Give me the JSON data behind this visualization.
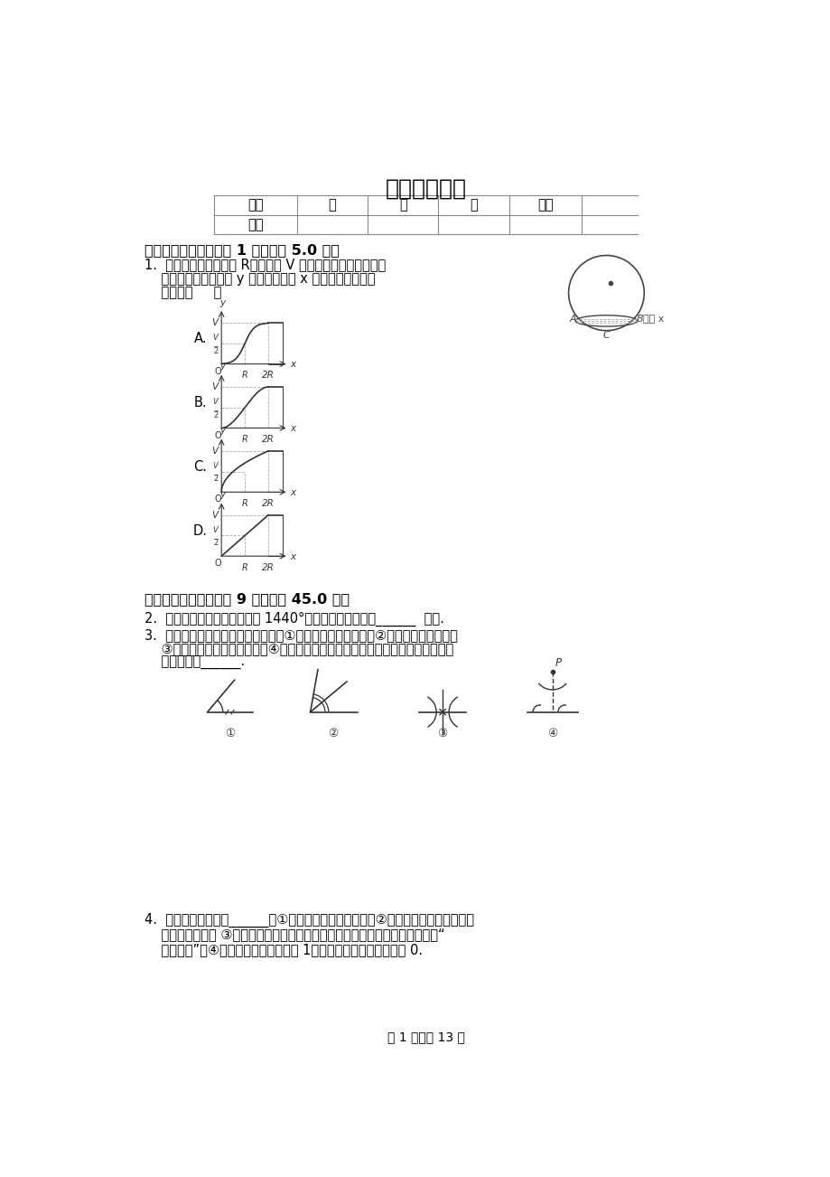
{
  "title": "开学数学试卷",
  "bg_color": "#ffffff",
  "text_color": "#000000",
  "table_headers": [
    "题号",
    "一",
    "二",
    "三",
    "总分"
  ],
  "table_row2": [
    "得分",
    "",
    "",
    "",
    ""
  ],
  "section1_title": "一、选择题（本大题共 1 小题，共 5.0 分）",
  "section2_title": "二、填空题（本大题共 9 小题，共 45.0 分）",
  "page_footer": "第 1 页，共 13 页"
}
